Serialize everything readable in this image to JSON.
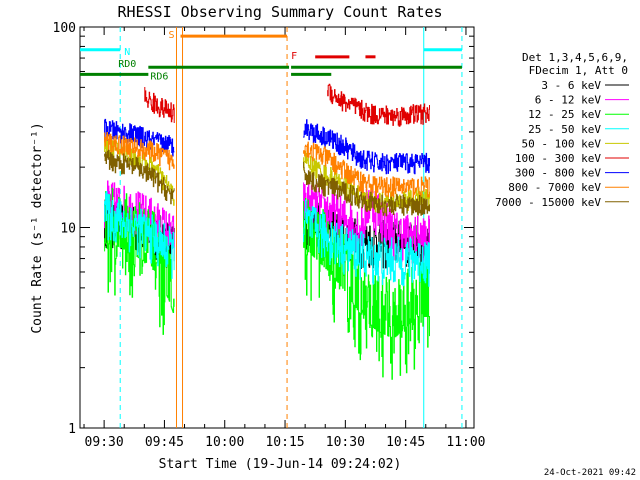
{
  "chart_data": {
    "type": "line",
    "title": "RHESSI Observing Summary Count Rates",
    "xlabel": "Start Time (19-Jun-14 09:24:02)",
    "ylabel": "Count Rate (s⁻¹ detector⁻¹)",
    "yscale": "log",
    "ylim": [
      1,
      100
    ],
    "xlim_minutes": [
      0,
      98
    ],
    "x_unit": "minutes after 09:24:02",
    "x_ticks": [
      {
        "t": 6.0,
        "label": "09:30"
      },
      {
        "t": 21.0,
        "label": "09:45"
      },
      {
        "t": 36.0,
        "label": "10:00"
      },
      {
        "t": 51.0,
        "label": "10:15"
      },
      {
        "t": 66.0,
        "label": "10:30"
      },
      {
        "t": 81.0,
        "label": "10:45"
      },
      {
        "t": 96.0,
        "label": "11:00"
      }
    ],
    "y_ticks": [
      {
        "v": 1,
        "label": "1"
      },
      {
        "v": 10,
        "label": "10"
      },
      {
        "v": 100,
        "label": "100"
      }
    ],
    "legend_header": [
      "Det 1,3,4,5,6,9,",
      "FDecim 1, Att 0"
    ],
    "legend_position": "right",
    "series": [
      {
        "name": "3 - 6 keV",
        "color": "#000000",
        "x": [
          6,
          10,
          14,
          18,
          22,
          23.5,
          55.5,
          58,
          62,
          66,
          72,
          78,
          84,
          87
        ],
        "y": [
          11,
          10.5,
          10,
          9.5,
          8.5,
          8,
          11,
          10.5,
          10,
          9,
          8.5,
          8.5,
          8.5,
          8.5
        ]
      },
      {
        "name": "6 - 12 keV",
        "color": "#ff00ff",
        "x": [
          6,
          10,
          14,
          18,
          22,
          23.5,
          55.5,
          58,
          62,
          66,
          70,
          72,
          78,
          84,
          87
        ],
        "y": [
          13.5,
          13,
          12,
          11,
          9.5,
          9,
          13.5,
          13,
          12,
          11,
          10,
          14,
          9.5,
          9,
          9
        ]
      },
      {
        "name": "12 - 25 keV",
        "color": "#00ff00",
        "x": [
          6,
          10,
          14,
          18,
          22,
          23.5,
          55.5,
          58,
          62,
          66,
          70,
          74,
          78,
          84,
          87
        ],
        "y": [
          10.5,
          10,
          9,
          8,
          5.5,
          4.5,
          10,
          9,
          7.5,
          6,
          4.5,
          3.8,
          3.5,
          4.5,
          4.5
        ]
      },
      {
        "name": "25 - 50 keV",
        "color": "#00ffff",
        "x": [
          6,
          10,
          14,
          18,
          22,
          23.5,
          55.5,
          58,
          62,
          66,
          70,
          74,
          78,
          84,
          87
        ],
        "y": [
          12,
          11,
          10,
          9,
          8,
          7.5,
          11,
          10,
          9,
          8,
          7.5,
          7,
          7,
          7,
          7
        ]
      },
      {
        "name": "50 - 100 keV",
        "color": "#c8c800",
        "x": [
          6,
          10,
          14,
          18,
          22,
          23.5,
          55.5,
          58,
          62,
          66,
          70,
          74,
          78,
          84,
          87
        ],
        "y": [
          25,
          24,
          22,
          20,
          16,
          14,
          22,
          20,
          18,
          16,
          14,
          13.5,
          13.5,
          14,
          14
        ]
      },
      {
        "name": "100 - 300 keV",
        "color": "#e00000",
        "x": [
          16,
          18,
          20,
          22,
          23.5,
          61.5,
          62.5,
          65,
          68,
          72,
          78,
          84,
          87
        ],
        "y": [
          45,
          42,
          40,
          38,
          37,
          50,
          47,
          43,
          40,
          37,
          36,
          37,
          37
        ]
      },
      {
        "name": "300 - 800 keV",
        "color": "#0000ff",
        "x": [
          6,
          10,
          14,
          18,
          22,
          23.5,
          55.5,
          58,
          62,
          66,
          70,
          74,
          78,
          84,
          87
        ],
        "y": [
          31,
          30,
          29,
          27,
          26,
          25,
          32,
          30,
          28,
          25,
          22,
          21,
          21,
          21,
          21
        ]
      },
      {
        "name": "800 - 7000 keV",
        "color": "#ff8000",
        "x": [
          6,
          10,
          14,
          18,
          22,
          23.5,
          55.5,
          58,
          62,
          66,
          70,
          74,
          78,
          84,
          87
        ],
        "y": [
          27,
          26,
          25,
          24,
          22,
          21,
          26,
          24,
          22,
          19,
          17,
          16,
          16,
          16,
          16
        ]
      },
      {
        "name": "7000 - 15000 keV",
        "color": "#806000",
        "x": [
          6,
          10,
          14,
          18,
          22,
          23.5,
          55.5,
          58,
          62,
          66,
          70,
          74,
          78,
          84,
          87
        ],
        "y": [
          22,
          21,
          20,
          18,
          15,
          14,
          19,
          17,
          16,
          15,
          14,
          13,
          13,
          13,
          13
        ]
      }
    ],
    "flag_annotations": [
      {
        "label": "N",
        "color": "#00ffff"
      },
      {
        "label": "S",
        "color": "#ff8000"
      },
      {
        "label": "F",
        "color": "#e00000"
      },
      {
        "label": "RD0",
        "color": "#008000"
      },
      {
        "label": "RD6",
        "color": "#008000"
      }
    ],
    "flag_bars": [
      {
        "label": "N",
        "color": "#00ffff",
        "level": 77,
        "segments": [
          [
            0,
            10
          ],
          [
            85.5,
            95
          ]
        ]
      },
      {
        "label": "S",
        "color": "#ff8000",
        "level": 90,
        "segments": [
          [
            25,
            51.5
          ]
        ]
      },
      {
        "label": "RD0",
        "color": "#008000",
        "level": 63,
        "segments": [
          [
            17,
            52
          ],
          [
            52.5,
            95
          ]
        ]
      },
      {
        "label": "RD6",
        "color": "#008000",
        "level": 58,
        "segments": [
          [
            0,
            17
          ],
          [
            52.5,
            62.5
          ]
        ]
      },
      {
        "label": "F",
        "color": "#e00000",
        "level": 71,
        "segments": [
          [
            58.5,
            67
          ],
          [
            71,
            73.5
          ]
        ]
      }
    ],
    "vertical_markers": [
      {
        "t": 10.0,
        "color": "#00ffff",
        "style": "dashed"
      },
      {
        "t": 24.0,
        "color": "#ff8000",
        "style": "solid"
      },
      {
        "t": 25.5,
        "color": "#ff8000",
        "style": "solid"
      },
      {
        "t": 51.5,
        "color": "#ff8000",
        "style": "dashed"
      },
      {
        "t": 85.5,
        "color": "#00ffff",
        "style": "solid"
      },
      {
        "t": 95.0,
        "color": "#00ffff",
        "style": "dashed"
      }
    ]
  },
  "footer": {
    "timestamp": "24-Oct-2021 09:42"
  }
}
